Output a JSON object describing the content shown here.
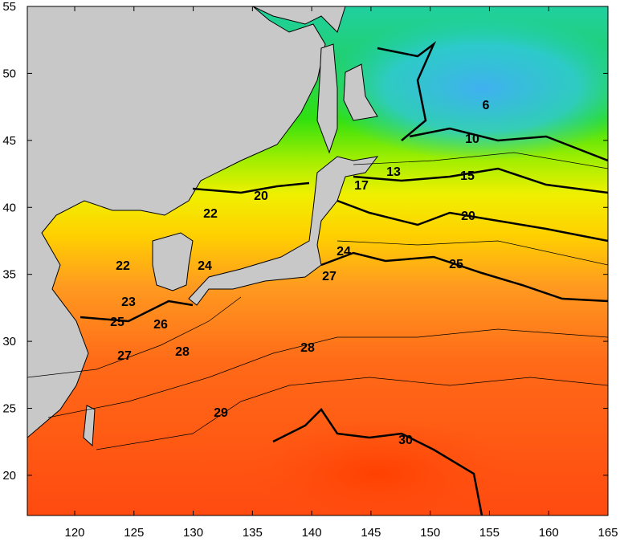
{
  "map": {
    "xlim": [
      116,
      165
    ],
    "ylim": [
      17,
      55
    ],
    "xticks": [
      120,
      125,
      130,
      135,
      140,
      145,
      150,
      155,
      160,
      165
    ],
    "yticks": [
      20,
      25,
      30,
      35,
      40,
      45,
      50,
      55
    ],
    "contour_labels": [
      20,
      22,
      22,
      23,
      24,
      25,
      26,
      27,
      28,
      28,
      29,
      27,
      24,
      25,
      20,
      17,
      15,
      13,
      10,
      6,
      30
    ]
  }
}
